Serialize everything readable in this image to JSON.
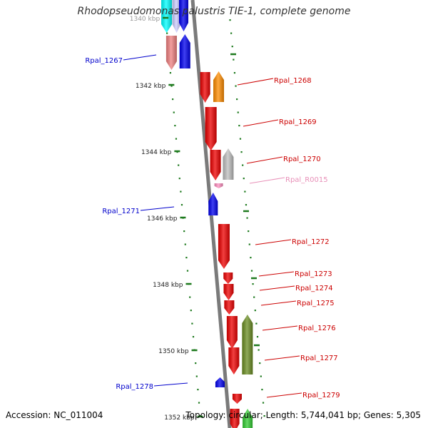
{
  "title": "Rhodopseudomonas palustris TIE-1, complete genome",
  "accession_text": "Accession: NC_011004",
  "summary_text": "Topology: circular; Length: 5,744,041 bp; Genes: 5,305",
  "colors": {
    "backbone": "#7a7a7a",
    "tick": "#1e7a1e",
    "label_blue": "#0000cc",
    "label_red": "#cc0000",
    "label_pink": "#e890b8"
  },
  "scale_labels": [
    "1340 kbp",
    "1342 kbp",
    "1344 kbp",
    "1346 kbp",
    "1348 kbp",
    "1350 kbp",
    "1352 kbp"
  ],
  "genes": [
    {
      "label": "",
      "color": "#00ffff",
      "strand": "minus"
    },
    {
      "label": "",
      "color": "#ccccff",
      "strand": "minus"
    },
    {
      "label": "",
      "color": "#0000ee",
      "strand": "minus"
    },
    {
      "label": "Rpal_1267",
      "color": "#f08080",
      "strand": "minus",
      "label_color": "#0000cc"
    },
    {
      "label": "",
      "color": "#0000ee",
      "strand": "plus"
    },
    {
      "label": "Rpal_1268",
      "color": "#ee0000",
      "strand": "minus",
      "label_color": "#cc0000"
    },
    {
      "label": "",
      "color": "#ff8c00",
      "strand": "plus"
    },
    {
      "label": "Rpal_1269",
      "color": "#ee0000",
      "strand": "minus",
      "label_color": "#cc0000"
    },
    {
      "label": "Rpal_1270",
      "color": "#ee0000",
      "strand": "minus",
      "label_color": "#cc0000"
    },
    {
      "label": "",
      "color": "#bfbfbf",
      "strand": "plus"
    },
    {
      "label": "Rpal_R0015",
      "color": "#ff8fc0",
      "strand": "minus",
      "label_color": "#e890b8"
    },
    {
      "label": "Rpal_1271",
      "color": "#0000ee",
      "strand": "plus",
      "label_color": "#0000cc"
    },
    {
      "label": "Rpal_1272",
      "color": "#ee0000",
      "strand": "minus",
      "label_color": "#cc0000"
    },
    {
      "label": "Rpal_1273",
      "color": "#ee0000",
      "strand": "minus",
      "label_color": "#cc0000"
    },
    {
      "label": "Rpal_1274",
      "color": "#ee0000",
      "strand": "minus",
      "label_color": "#cc0000"
    },
    {
      "label": "Rpal_1275",
      "color": "#ee0000",
      "strand": "minus",
      "label_color": "#cc0000"
    },
    {
      "label": "Rpal_1276",
      "color": "#ee0000",
      "strand": "minus",
      "label_color": "#cc0000"
    },
    {
      "label": "",
      "color": "#6b8e23",
      "strand": "plus"
    },
    {
      "label": "Rpal_1277",
      "color": "#ee0000",
      "strand": "minus",
      "label_color": "#cc0000"
    },
    {
      "label": "Rpal_1278",
      "color": "#0000ee",
      "strand": "plus",
      "label_color": "#0000cc"
    },
    {
      "label": "Rpal_1279",
      "color": "#ee0000",
      "strand": "minus",
      "label_color": "#cc0000"
    },
    {
      "label": "",
      "color": "#ee0000",
      "strand": "minus"
    },
    {
      "label": "",
      "color": "#32cd32",
      "strand": "plus"
    }
  ]
}
